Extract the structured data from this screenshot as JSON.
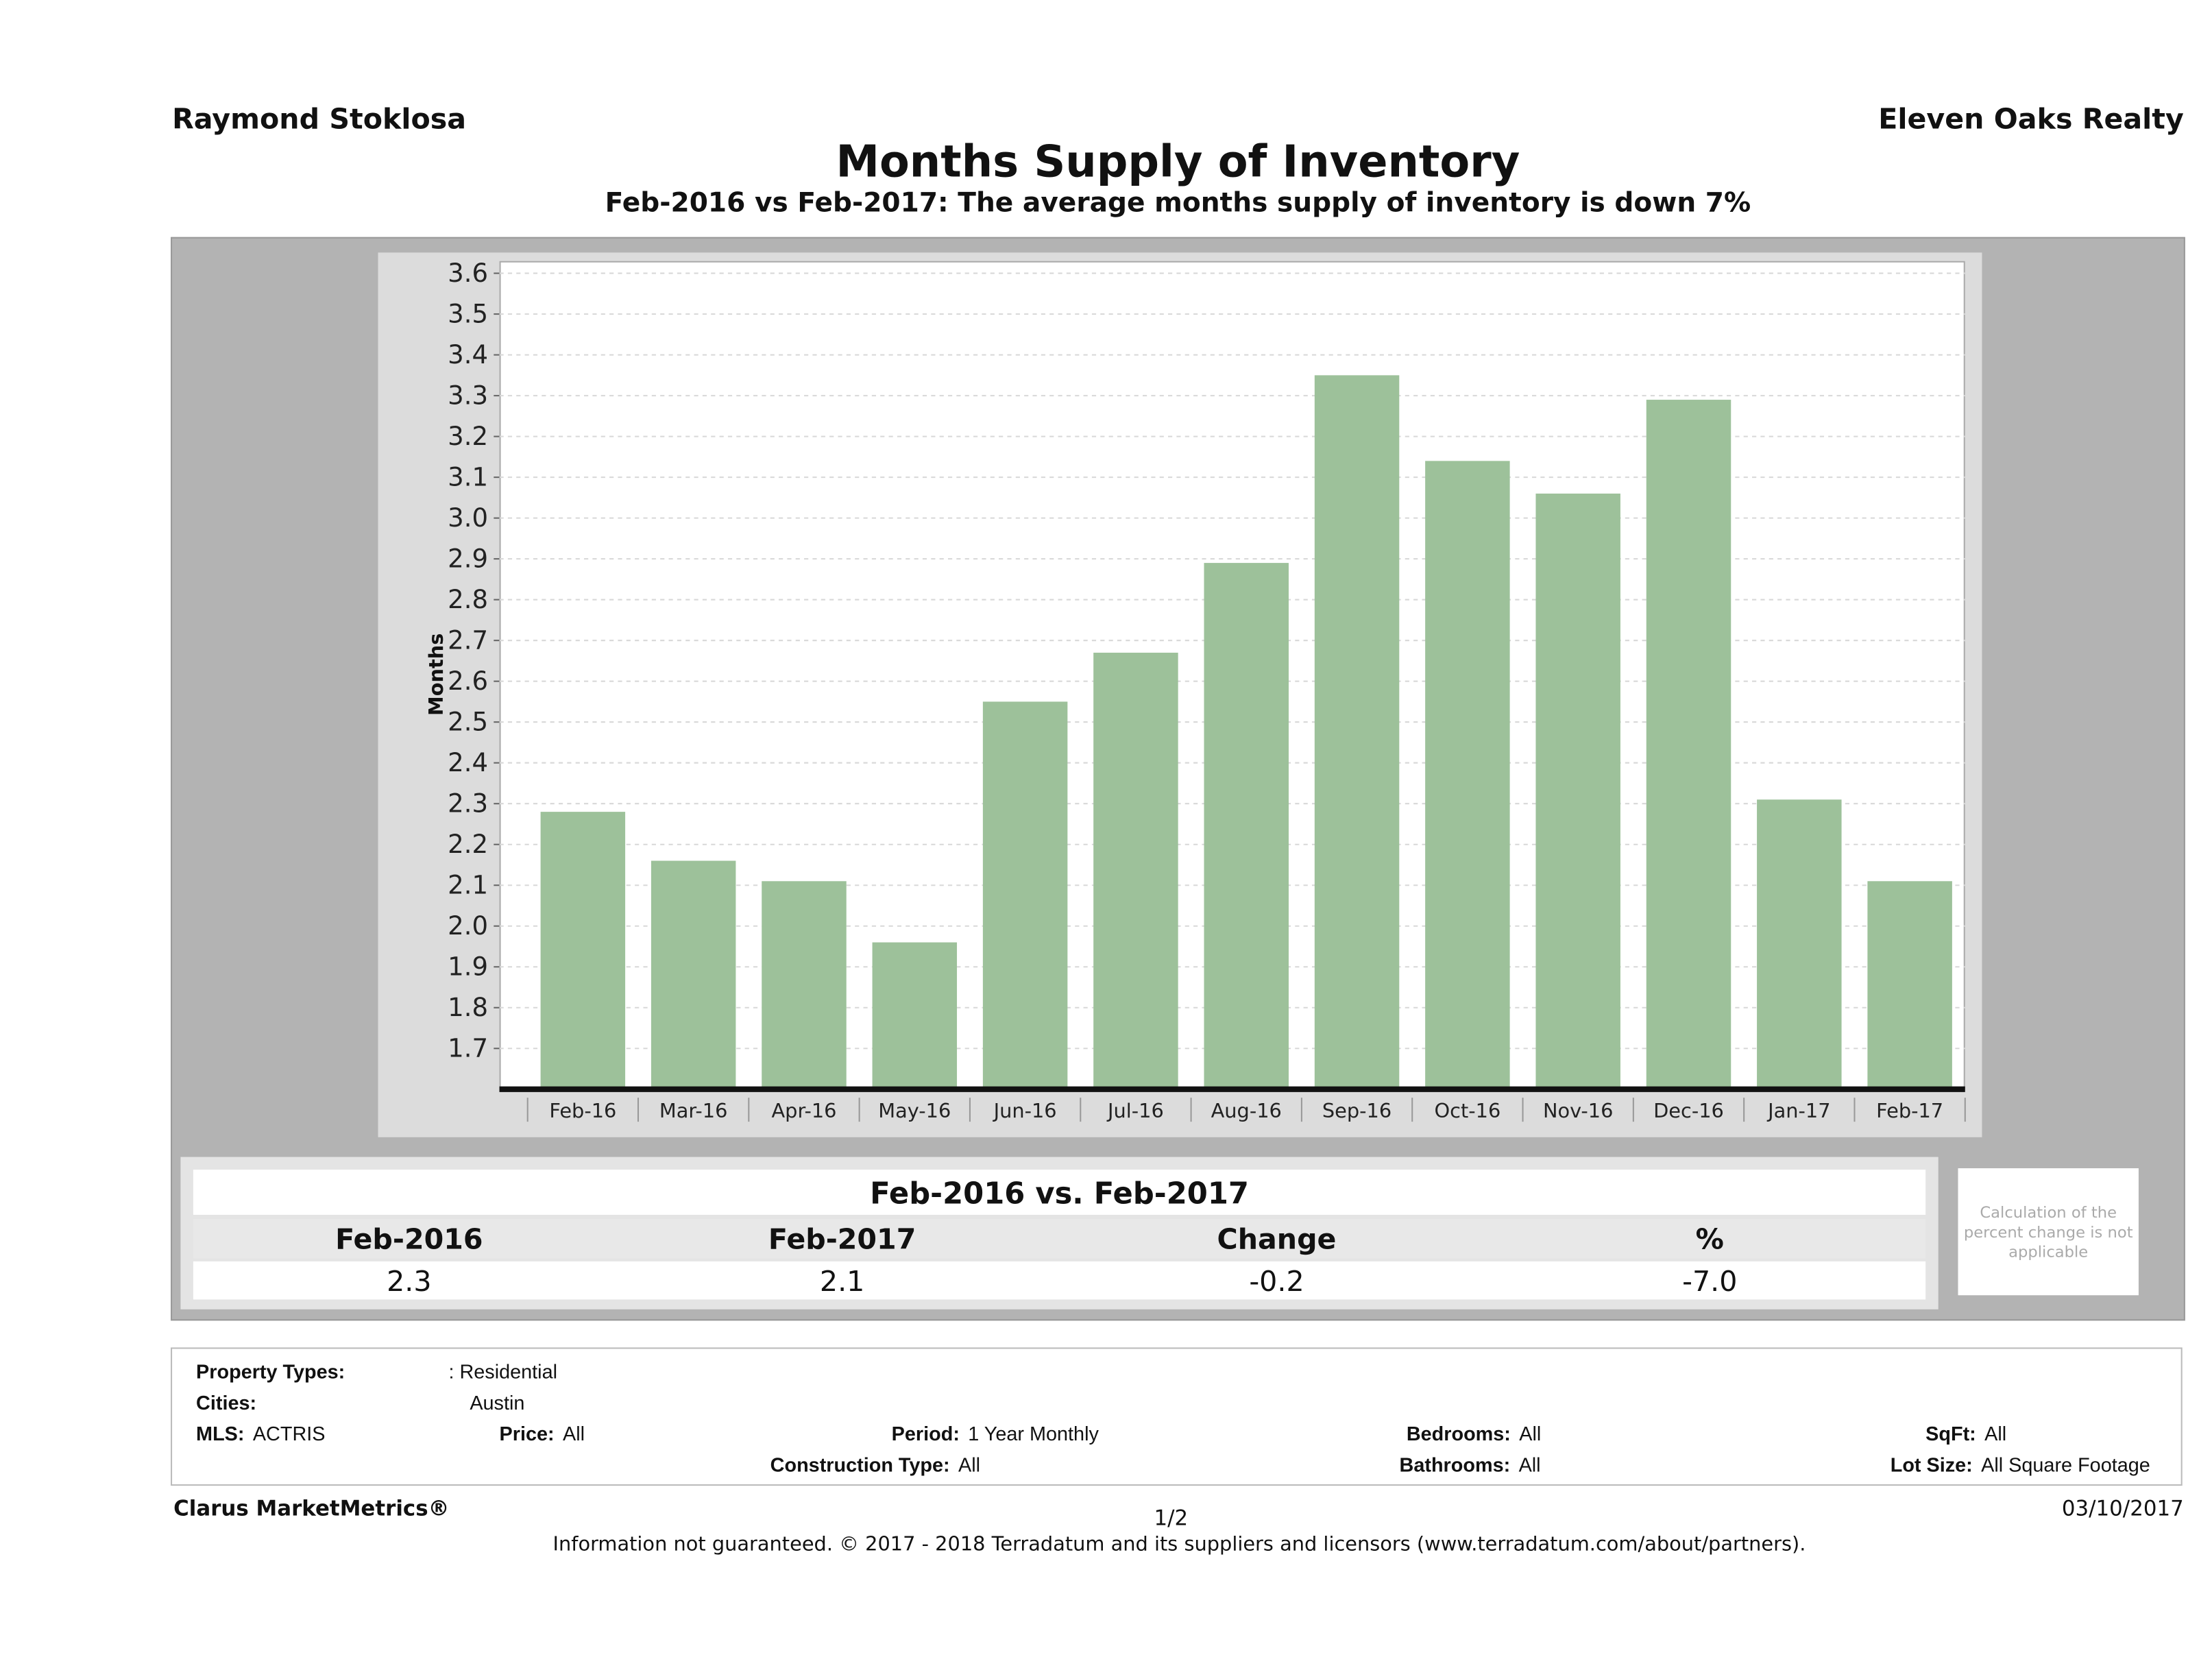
{
  "header": {
    "agent": "Raymond Stoklosa",
    "brokerage": "Eleven Oaks Realty",
    "title": "Months Supply of Inventory",
    "subtitle": "Feb-2016 vs Feb-2017: The average months supply of inventory is down 7%"
  },
  "chart_data": {
    "type": "bar",
    "title": "Months Supply of Inventory",
    "xlabel": "",
    "ylabel": "Months",
    "ylim": [
      1.6,
      3.63
    ],
    "grid": true,
    "yticks": [
      "1.7",
      "1.8",
      "1.9",
      "2.0",
      "2.1",
      "2.2",
      "2.3",
      "2.4",
      "2.5",
      "2.6",
      "2.7",
      "2.8",
      "2.9",
      "3.0",
      "3.1",
      "3.2",
      "3.3",
      "3.4",
      "3.5",
      "3.6"
    ],
    "categories": [
      "Feb-16",
      "Mar-16",
      "Apr-16",
      "May-16",
      "Jun-16",
      "Jul-16",
      "Aug-16",
      "Sep-16",
      "Oct-16",
      "Nov-16",
      "Dec-16",
      "Jan-17",
      "Feb-17"
    ],
    "values": [
      2.28,
      2.16,
      2.11,
      1.96,
      2.55,
      2.67,
      2.89,
      3.35,
      3.14,
      3.06,
      3.29,
      2.31,
      2.11
    ],
    "bar_color": "#9dc19a"
  },
  "summary": {
    "heading": "Feb-2016 vs. Feb-2017",
    "columns": [
      "Feb-2016",
      "Feb-2017",
      "Change",
      "%"
    ],
    "values": [
      "2.3",
      "2.1",
      "-0.2",
      "-7.0"
    ],
    "note": "Calculation of the percent change is not applicable"
  },
  "filters": {
    "property_types_label": "Property Types:",
    "property_types": ": Residential",
    "cities_label": "Cities:",
    "cities": "Austin",
    "mls_label": "MLS:",
    "mls": "ACTRIS",
    "price_label": "Price:",
    "price": "All",
    "period_label": "Period:",
    "period": "1 Year Monthly",
    "bedrooms_label": "Bedrooms:",
    "bedrooms": "All",
    "sqft_label": "SqFt:",
    "sqft": "All",
    "construction_label": "Construction Type:",
    "construction": "All",
    "bathrooms_label": "Bathrooms:",
    "bathrooms": "All",
    "lot_label": "Lot Size:",
    "lot": "All Square Footage"
  },
  "footer": {
    "product": "Clarus MarketMetrics®",
    "page": "1/2",
    "date": "03/10/2017",
    "disclaimer": "Information not guaranteed. © 2017 - 2018 Terradatum and its suppliers and licensors (www.terradatum.com/about/partners)."
  }
}
